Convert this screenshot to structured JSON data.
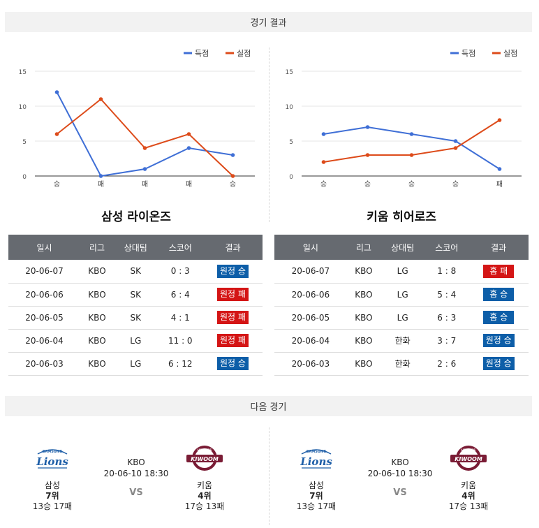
{
  "sections": {
    "results_title": "경기 결과",
    "next_title": "다음 경기"
  },
  "colors": {
    "score": "#3f6fd6",
    "allowed": "#dd4b1a",
    "win_badge": "#0d5ea8",
    "loss_badge": "#d41515",
    "header_bg": "#666a70"
  },
  "chart_data": [
    {
      "type": "line",
      "categories": [
        "승",
        "패",
        "패",
        "패",
        "승"
      ],
      "ylim": [
        0,
        15
      ],
      "yticks": [
        0,
        5,
        10,
        15
      ],
      "grid": true,
      "legend_position": "top-right",
      "series": [
        {
          "name": "득점",
          "values": [
            12,
            0,
            1,
            4,
            3
          ]
        },
        {
          "name": "실점",
          "values": [
            6,
            11,
            4,
            6,
            0
          ]
        }
      ]
    },
    {
      "type": "line",
      "categories": [
        "승",
        "승",
        "승",
        "승",
        "패"
      ],
      "ylim": [
        0,
        15
      ],
      "yticks": [
        0,
        5,
        10,
        15
      ],
      "grid": true,
      "legend_position": "top-right",
      "series": [
        {
          "name": "득점",
          "values": [
            6,
            7,
            6,
            5,
            1
          ]
        },
        {
          "name": "실점",
          "values": [
            2,
            3,
            3,
            4,
            8
          ]
        }
      ]
    }
  ],
  "teams": {
    "left": {
      "name": "삼성 라이온즈"
    },
    "right": {
      "name": "키움 히어로즈"
    }
  },
  "table_headers": [
    "일시",
    "리그",
    "상대팀",
    "스코어",
    "결과"
  ],
  "tables": {
    "left": [
      {
        "date": "20-06-07",
        "league": "KBO",
        "opponent": "SK",
        "score": "0 : 3",
        "result": "원정 승",
        "result_type": "win"
      },
      {
        "date": "20-06-06",
        "league": "KBO",
        "opponent": "SK",
        "score": "6 : 4",
        "result": "원정 패",
        "result_type": "loss"
      },
      {
        "date": "20-06-05",
        "league": "KBO",
        "opponent": "SK",
        "score": "4 : 1",
        "result": "원정 패",
        "result_type": "loss"
      },
      {
        "date": "20-06-04",
        "league": "KBO",
        "opponent": "LG",
        "score": "11 : 0",
        "result": "원정 패",
        "result_type": "loss"
      },
      {
        "date": "20-06-03",
        "league": "KBO",
        "opponent": "LG",
        "score": "6 : 12",
        "result": "원정 승",
        "result_type": "win"
      }
    ],
    "right": [
      {
        "date": "20-06-07",
        "league": "KBO",
        "opponent": "LG",
        "score": "1 : 8",
        "result": "홈 패",
        "result_type": "loss"
      },
      {
        "date": "20-06-06",
        "league": "KBO",
        "opponent": "LG",
        "score": "5 : 4",
        "result": "홈 승",
        "result_type": "win"
      },
      {
        "date": "20-06-05",
        "league": "KBO",
        "opponent": "LG",
        "score": "6 : 3",
        "result": "홈 승",
        "result_type": "win"
      },
      {
        "date": "20-06-04",
        "league": "KBO",
        "opponent": "한화",
        "score": "3 : 7",
        "result": "원정 승",
        "result_type": "win"
      },
      {
        "date": "20-06-03",
        "league": "KBO",
        "opponent": "한화",
        "score": "2 : 6",
        "result": "원정 승",
        "result_type": "win"
      }
    ]
  },
  "next_match": {
    "league": "KBO",
    "datetime": "20-06-10 18:30",
    "vs": "VS",
    "home": {
      "name": "삼성",
      "rank": "7위",
      "record": "13승 17패",
      "logo_text": "Lions",
      "logo_small": "SAMSUNG"
    },
    "away": {
      "name": "키움",
      "rank": "4위",
      "record": "17승 13패",
      "logo_text": "KIWOOM",
      "logo_small": "HEROES"
    }
  }
}
